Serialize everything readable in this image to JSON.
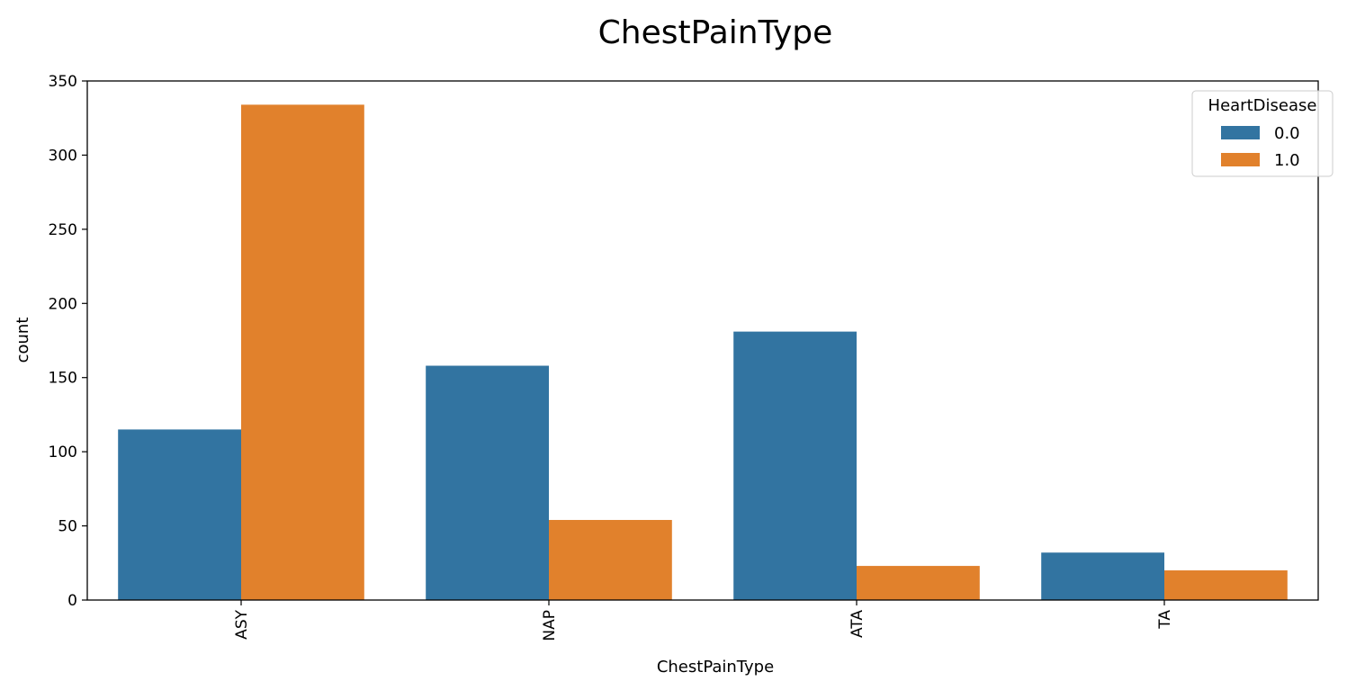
{
  "chart_data": {
    "type": "bar",
    "title": "ChestPainType",
    "xlabel": "ChestPainType",
    "ylabel": "count",
    "categories": [
      "ASY",
      "NAP",
      "ATA",
      "TA"
    ],
    "series": [
      {
        "name": "0.0",
        "values": [
          115,
          158,
          181,
          32
        ],
        "color": "#3274a1"
      },
      {
        "name": "1.0",
        "values": [
          334,
          54,
          23,
          20
        ],
        "color": "#e1812c"
      }
    ],
    "ylim": [
      0,
      350
    ],
    "yticks": [
      0,
      50,
      100,
      150,
      200,
      250,
      300,
      350
    ],
    "legend": {
      "title": "HeartDisease",
      "position": "top-right"
    },
    "grid": false
  }
}
